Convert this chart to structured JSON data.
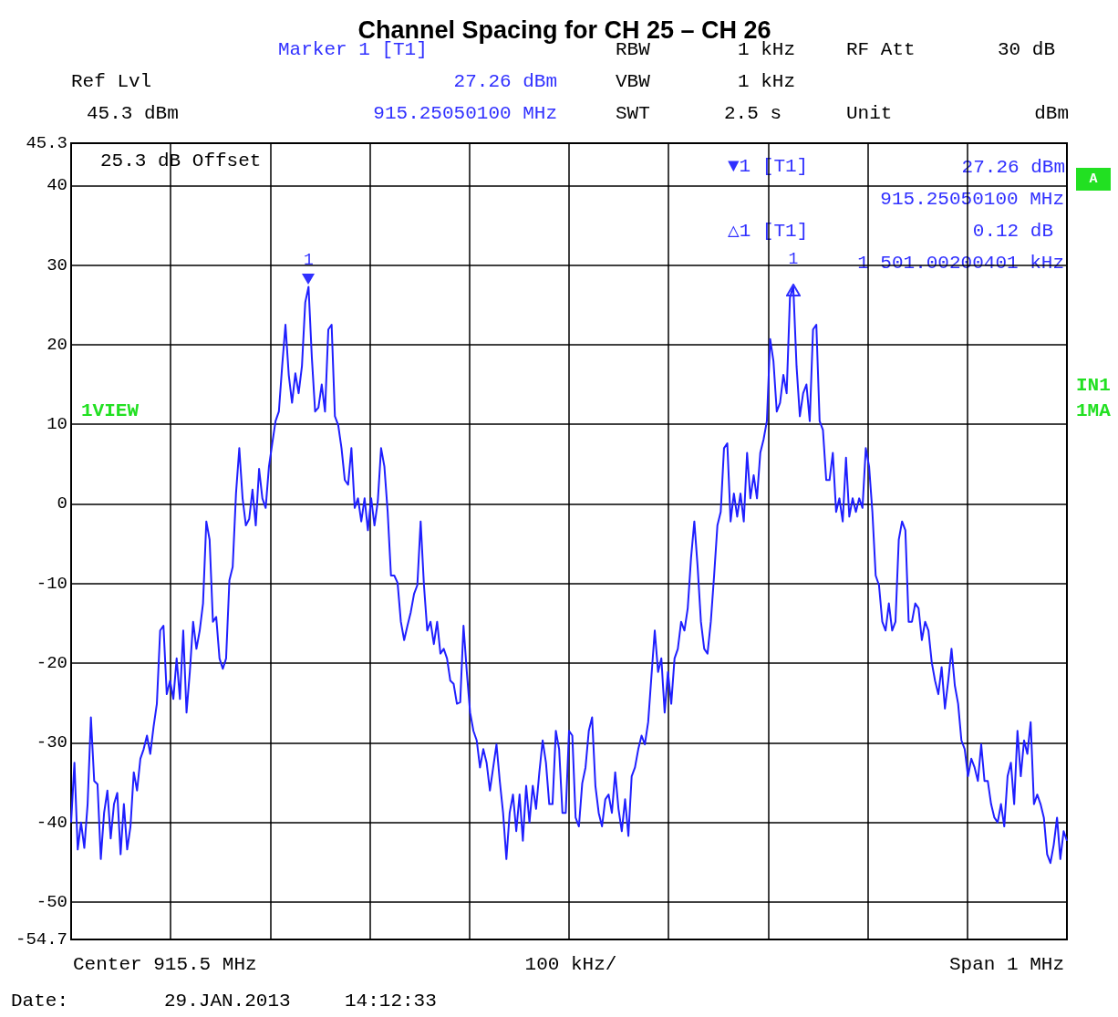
{
  "chart_data": {
    "type": "line",
    "title": "Channel Spacing for CH 25 – CH 26",
    "color": "#1f1fff",
    "grid": true,
    "tick_labels": "y",
    "ylim": [
      -54.7,
      45.3
    ],
    "yticks": [
      -54.7,
      -50,
      -40,
      -30,
      -20,
      -10,
      0,
      10,
      20,
      30,
      40,
      45.3
    ],
    "categories": [
      null,
      null,
      null,
      null,
      null,
      null,
      null,
      null,
      null,
      null,
      null,
      null,
      null,
      null,
      null,
      null,
      null,
      null,
      null,
      null,
      null,
      null,
      null,
      null,
      null,
      null,
      null,
      null,
      null,
      null,
      null,
      null,
      null,
      null,
      null,
      null,
      null,
      null,
      null,
      null,
      null,
      null,
      null,
      null,
      null,
      null,
      null,
      null,
      null,
      null,
      null,
      null,
      null,
      null,
      null,
      null,
      null,
      null,
      null,
      null,
      null,
      null,
      null,
      null,
      null,
      null,
      null,
      null,
      null,
      null,
      null,
      null,
      null,
      null,
      null,
      null,
      null,
      null,
      null,
      null,
      null,
      null,
      null,
      null,
      null,
      null,
      null,
      null,
      null,
      null,
      null,
      null,
      null,
      null,
      null,
      null,
      null,
      null,
      null,
      null,
      null,
      null,
      null,
      null,
      null,
      null,
      null,
      null,
      null,
      null,
      null,
      null,
      null,
      null,
      null,
      null,
      null,
      null,
      null,
      null,
      null,
      null,
      null,
      null,
      null,
      null,
      null,
      null,
      null,
      null,
      null,
      null,
      null,
      null,
      null,
      null,
      null,
      null,
      null,
      null,
      null,
      null,
      null,
      null,
      null,
      null,
      null,
      null,
      null,
      null,
      null,
      null,
      null,
      null,
      null,
      null,
      null,
      null,
      null,
      null,
      null,
      null,
      null,
      null,
      null,
      null,
      null,
      null,
      null,
      null,
      null,
      null,
      null,
      null,
      null,
      null,
      null,
      null,
      null,
      null,
      null,
      null,
      null,
      null,
      null,
      null,
      null,
      null,
      null,
      null,
      null,
      null,
      null,
      null,
      null,
      null,
      null,
      null,
      null,
      null,
      null,
      null,
      null,
      null,
      null,
      null,
      null,
      null,
      null,
      null,
      null,
      null,
      null,
      null,
      null,
      null,
      null,
      null,
      null,
      null,
      null,
      null,
      null,
      null,
      null,
      null,
      null,
      null,
      null,
      null,
      null,
      null,
      null,
      null,
      null,
      null,
      null,
      null,
      null,
      null,
      null,
      null,
      null,
      null,
      null,
      null,
      null,
      null,
      null,
      null,
      null,
      null,
      null,
      null,
      null,
      null,
      null,
      null,
      null,
      null,
      null,
      null,
      null,
      null,
      null,
      null,
      null,
      null,
      null,
      null,
      null,
      null,
      null,
      null,
      null,
      null,
      null,
      null,
      null,
      null,
      null,
      null,
      null,
      null,
      null,
      null,
      null,
      null,
      null,
      null,
      null,
      null,
      null,
      null,
      null,
      null,
      null,
      null,
      null,
      null,
      null,
      null,
      null
    ],
    "values": [
      -40.0,
      -32.5,
      -43.4,
      -40.0,
      -43.2,
      -37.7,
      -26.8,
      -34.8,
      -35.2,
      -44.6,
      -38.8,
      -36.0,
      -42.0,
      -37.7,
      -36.3,
      -44.0,
      -37.7,
      -43.4,
      -40.5,
      -33.7,
      -36.0,
      -32.0,
      -30.8,
      -29.1,
      -31.4,
      -28.0,
      -25.1,
      -15.9,
      -15.3,
      -23.9,
      -22.2,
      -24.5,
      -19.4,
      -24.5,
      -15.9,
      -26.2,
      -21.1,
      -14.8,
      -18.2,
      -15.9,
      -12.5,
      -2.2,
      -4.5,
      -14.8,
      -14.2,
      -19.4,
      -20.7,
      -19.4,
      -9.6,
      -7.9,
      1.3,
      7.0,
      0.7,
      -2.7,
      -1.9,
      1.8,
      -2.7,
      4.4,
      0.7,
      -0.5,
      4.7,
      7.6,
      10.4,
      11.6,
      17.3,
      22.5,
      16.2,
      12.7,
      16.4,
      13.9,
      17.3,
      25.3,
      27.26,
      18.4,
      11.6,
      12.1,
      15.0,
      11.6,
      21.9,
      22.5,
      11.0,
      9.9,
      7.0,
      3.0,
      2.4,
      7.0,
      -0.5,
      0.7,
      -2.2,
      0.7,
      -3.3,
      0.7,
      -2.7,
      0.3,
      7.0,
      4.7,
      -1.0,
      -9.0,
      -9.0,
      -9.9,
      -14.8,
      -17.1,
      -15.3,
      -13.6,
      -11.3,
      -10.2,
      -2.2,
      -10.2,
      -15.9,
      -14.8,
      -17.6,
      -14.8,
      -18.8,
      -18.2,
      -19.4,
      -22.2,
      -22.6,
      -25.1,
      -24.9,
      -15.3,
      -21.1,
      -26.2,
      -28.5,
      -29.7,
      -33.1,
      -30.8,
      -32.5,
      -36.0,
      -33.1,
      -30.2,
      -34.8,
      -38.8,
      -44.6,
      -38.8,
      -36.5,
      -41.1,
      -36.5,
      -42.3,
      -35.4,
      -40.0,
      -35.4,
      -38.3,
      -33.7,
      -29.7,
      -32.5,
      -37.7,
      -37.7,
      -28.5,
      -30.8,
      -38.8,
      -38.8,
      -28.5,
      -29.1,
      -39.4,
      -40.5,
      -35.1,
      -33.1,
      -28.5,
      -26.8,
      -35.4,
      -38.8,
      -40.5,
      -37.1,
      -36.5,
      -38.8,
      -33.7,
      -38.3,
      -41.1,
      -37.1,
      -41.7,
      -34.2,
      -33.1,
      -30.8,
      -29.1,
      -30.2,
      -27.4,
      -21.6,
      -15.9,
      -21.1,
      -19.4,
      -26.2,
      -21.1,
      -25.1,
      -19.4,
      -18.2,
      -14.8,
      -15.9,
      -13.1,
      -6.8,
      -2.2,
      -7.9,
      -14.8,
      -18.2,
      -18.8,
      -14.8,
      -9.0,
      -2.7,
      -1.0,
      7.0,
      7.6,
      -2.2,
      1.3,
      -1.6,
      1.3,
      -2.2,
      6.4,
      0.7,
      3.6,
      0.7,
      6.4,
      8.1,
      10.4,
      20.7,
      17.9,
      11.6,
      12.7,
      16.2,
      13.9,
      25.9,
      27.38,
      17.3,
      11.0,
      13.9,
      15.0,
      10.4,
      21.9,
      22.5,
      10.4,
      9.3,
      3.0,
      3.0,
      6.4,
      -1.0,
      0.7,
      -2.2,
      5.8,
      -1.6,
      0.7,
      -1.0,
      0.7,
      -0.5,
      7.0,
      4.7,
      -1.0,
      -9.0,
      -10.2,
      -14.8,
      -15.9,
      -12.5,
      -15.9,
      -14.8,
      -4.5,
      -2.2,
      -3.3,
      -14.8,
      -14.8,
      -12.5,
      -13.1,
      -17.1,
      -14.8,
      -15.9,
      -19.9,
      -22.2,
      -23.9,
      -20.5,
      -25.7,
      -22.2,
      -18.2,
      -22.8,
      -25.1,
      -29.7,
      -30.8,
      -34.2,
      -32.0,
      -33.1,
      -34.8,
      -30.2,
      -34.8,
      -34.8,
      -37.7,
      -39.4,
      -40.0,
      -37.7,
      -40.5,
      -34.2,
      -32.5,
      -37.7,
      -28.5,
      -34.2,
      -29.7,
      -31.4,
      -27.4,
      -37.7,
      -36.5,
      -37.7,
      -39.4,
      -44.0,
      -45.1,
      -42.8,
      -39.4,
      -44.6,
      -41.1,
      -42.3
    ],
    "annotations": [
      "Marker 1 [T1]",
      "27.26 dBm",
      "915.25050100 MHz",
      "RBW",
      "1 kHz",
      "VBW",
      "1 kHz",
      "SWT",
      "2.5 s",
      "RF Att",
      "30 dB",
      "Unit",
      "dBm",
      "Ref Lvl",
      "45.3 dBm",
      "25.3 dB Offset",
      "▼1 [T1]",
      "27.26 dBm",
      "915.25050100 MHz",
      "△1 [T1]",
      "0.12 dB",
      "1 501.00200401 kHz",
      "1VIEW",
      "A",
      "IN1",
      "1MA",
      "Center 915.5 MHz",
      "100 kHz/",
      "Span 1 MHz",
      "Date:",
      "29.JAN.2013",
      "14:12:33",
      {
        "text": "1",
        "y": 27.26
      },
      {
        "text": "1",
        "y": 27.38
      }
    ]
  }
}
